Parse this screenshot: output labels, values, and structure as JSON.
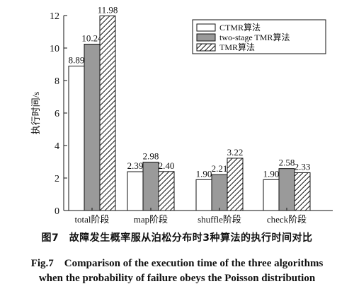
{
  "chart_data": {
    "type": "bar",
    "categories": [
      "total阶段",
      "map阶段",
      "shuffle阶段",
      "check阶段"
    ],
    "series": [
      {
        "name": "CTMR算法",
        "values": [
          8.89,
          2.39,
          1.9,
          1.9
        ],
        "labels": [
          "8.89",
          "2.39",
          "1.90",
          "1.90"
        ],
        "fill": "white"
      },
      {
        "name": "two-stage TMR算法",
        "values": [
          10.24,
          2.98,
          2.21,
          2.58
        ],
        "labels": [
          "10.24",
          "2.98",
          "2.21",
          "2.58"
        ],
        "fill": "gray"
      },
      {
        "name": "TMR算法",
        "values": [
          11.98,
          2.4,
          3.22,
          2.33
        ],
        "labels": [
          "11.98",
          "2.40",
          "3.22",
          "2.33"
        ],
        "fill": "hatch"
      }
    ],
    "title": "",
    "xlabel": "",
    "ylabel": "执行时间/s",
    "ylim": [
      0,
      12
    ],
    "yticks": [
      0,
      2,
      4,
      6,
      8,
      10,
      12
    ],
    "grid": false,
    "legend_position": "top-right",
    "colors": {
      "gray": "#9a9a9a",
      "outline": "#111111",
      "white": "#ffffff"
    }
  },
  "caption": {
    "chinese": "图7　故障发生概率服从泊松分布时3种算法的执行时间对比",
    "english_line1": "Fig.7　Comparison of the execution time of the three algorithms",
    "english_line2": "when the probability of failure obeys the Poisson distribution"
  }
}
